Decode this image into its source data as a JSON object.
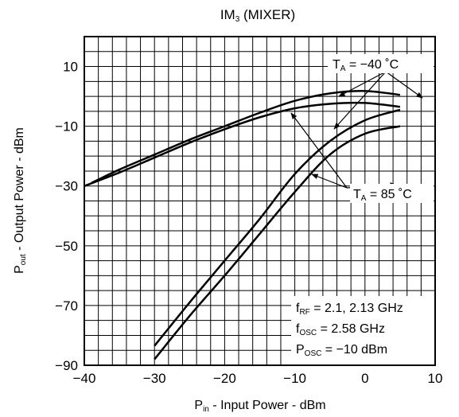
{
  "chart_data": {
    "type": "line",
    "title": {
      "main": "IM",
      "sub": "3",
      "rest": " (MIXER)"
    },
    "xlabel": {
      "main": "P",
      "sub": "in",
      "rest": " -  Input Power  - dBm"
    },
    "ylabel": {
      "main": "P",
      "sub": "out",
      "rest": " -  Output Power  - dBm"
    },
    "xlim": [
      -40,
      10
    ],
    "ylim": [
      -90,
      20
    ],
    "x_ticks": [
      -40,
      -30,
      -20,
      -10,
      0,
      10
    ],
    "x_tick_labels": [
      "−40",
      "−30",
      "−20",
      "−10",
      "0",
      "10"
    ],
    "y_ticks": [
      -90,
      -70,
      -50,
      -30,
      -10,
      10
    ],
    "y_tick_labels": [
      "−90",
      "−70",
      "−50",
      "−30",
      "−10",
      "10"
    ],
    "grid": true,
    "series": [
      {
        "x": [
          -39,
          -35,
          -30,
          -25,
          -20,
          -15,
          -10,
          -5,
          0,
          5
        ],
        "y": [
          -29,
          -24.5,
          -19.5,
          -14.5,
          -10,
          -5.5,
          -1.5,
          1,
          1.8,
          0.5
        ]
      },
      {
        "x": [
          -40,
          -35,
          -30,
          -25,
          -20,
          -15,
          -10,
          -5,
          0,
          5
        ],
        "y": [
          -30,
          -25.5,
          -20.5,
          -15.5,
          -11,
          -7,
          -4,
          -2.5,
          -2.2,
          -3.5
        ]
      },
      {
        "x": [
          -30,
          -25,
          -20,
          -15,
          -10,
          -5,
          0,
          5
        ],
        "y": [
          -83.5,
          -69,
          -55,
          -41,
          -26,
          -15,
          -8,
          -4.5
        ]
      },
      {
        "x": [
          -30,
          -25,
          -20,
          -15,
          -10,
          -5,
          0,
          5
        ],
        "y": [
          -88,
          -73.5,
          -60,
          -46,
          -32,
          -19.5,
          -12.5,
          -10
        ]
      }
    ],
    "annotations": {
      "label_minus40": {
        "main": "T",
        "sub": "A",
        "rest": " = −40 ˚C"
      },
      "label_85": {
        "main": "T",
        "sub": "A",
        "rest": " = 85 ˚C"
      },
      "cond1": {
        "main": "f",
        "sub": "RF",
        "rest": " = 2.1, 2.13 GHz"
      },
      "cond2": {
        "main": "f",
        "sub": "OSC",
        "rest": " = 2.58 GHz"
      },
      "cond3": {
        "main": "P",
        "sub": "OSC",
        "rest": " = −10 dBm"
      }
    }
  }
}
